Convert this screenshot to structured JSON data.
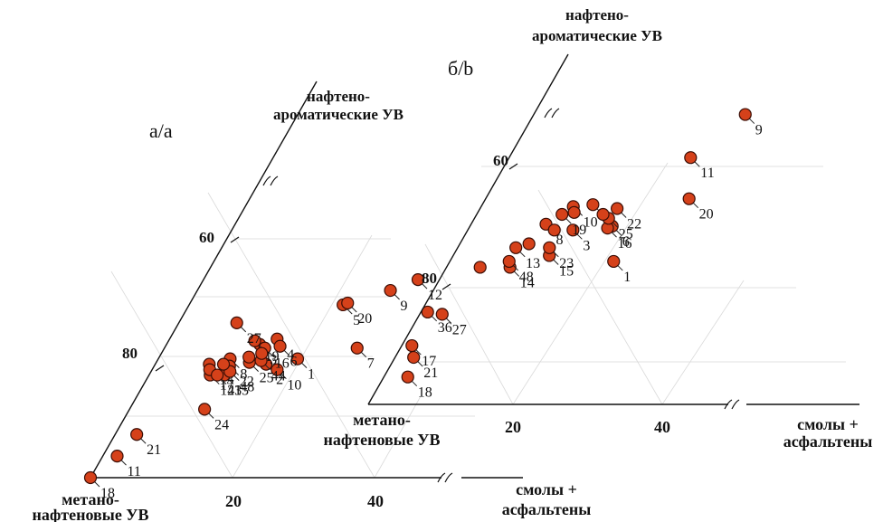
{
  "chart_data": [
    {
      "type": "scatter",
      "panel_label": "а/a",
      "axes": {
        "top": [
          "нафтено-",
          "ароматические УВ"
        ],
        "left": [
          "метано-",
          "нафтеновые УВ"
        ],
        "right": [
          "смолы +",
          "асфальтены"
        ]
      },
      "tick_labels": {
        "top_axis": [
          "60",
          "80"
        ],
        "bottom_axis": [
          "20",
          "40"
        ]
      },
      "points": [
        {
          "label": "1",
          "x": 19.5,
          "y": 33.0
        },
        {
          "label": "2",
          "x": 15.5,
          "y": 31.5
        },
        {
          "label": "3",
          "x": 13.0,
          "y": 37.0
        },
        {
          "label": "4",
          "x": 15.0,
          "y": 38.5
        },
        {
          "label": "5",
          "x": 21.5,
          "y": 48.0
        },
        {
          "label": "6",
          "x": 16.0,
          "y": 36.5
        },
        {
          "label": "7",
          "x": 27.0,
          "y": 36.0
        },
        {
          "label": "8",
          "x": 10.0,
          "y": 33.0
        },
        {
          "label": "9",
          "x": 27.0,
          "y": 52.0
        },
        {
          "label": "10",
          "x": 17.5,
          "y": 30.0
        },
        {
          "label": "11",
          "x": 2.0,
          "y": 6.0
        },
        {
          "label": "12",
          "x": 30.0,
          "y": 55.0
        },
        {
          "label": "13",
          "x": 7.5,
          "y": 31.5
        },
        {
          "label": "14",
          "x": 8.5,
          "y": 28.5
        },
        {
          "label": "15",
          "x": 10.5,
          "y": 28.5
        },
        {
          "label": "16",
          "x": 14.0,
          "y": 36.0
        },
        {
          "label": "17",
          "x": 8.0,
          "y": 30.0
        },
        {
          "label": "18",
          "x": 0.0,
          "y": 0.0
        },
        {
          "label": "19",
          "x": 12.0,
          "y": 38.0
        },
        {
          "label": "20",
          "x": 22.0,
          "y": 48.5
        },
        {
          "label": "21",
          "x": 3.0,
          "y": 12.0
        },
        {
          "label": "22",
          "x": 10.5,
          "y": 31.0
        },
        {
          "label": "23",
          "x": 9.5,
          "y": 28.5
        },
        {
          "label": "24",
          "x": 10.5,
          "y": 19.0
        },
        {
          "label": "25",
          "x": 13.0,
          "y": 32.0
        },
        {
          "label": "27",
          "x": 8.0,
          "y": 43.0
        },
        {
          "label": "36",
          "x": 34.0,
          "y": 46.0
        },
        {
          "label": "44",
          "x": 14.5,
          "y": 32.5
        },
        {
          "label": "48",
          "x": 11.0,
          "y": 29.5
        },
        {
          "label": "",
          "x": 9.5,
          "y": 31.5
        },
        {
          "label": "",
          "x": 14.0,
          "y": 34.5
        },
        {
          "label": "",
          "x": 12.5,
          "y": 33.5
        }
      ]
    },
    {
      "type": "scatter",
      "panel_label": "б/b",
      "axes": {
        "top": [
          "нафтено-",
          "ароматические УВ"
        ],
        "left": [
          "метано-",
          "нафтеновые УВ"
        ],
        "right": [
          "смолы +",
          "асфальтены"
        ]
      },
      "tick_labels": {
        "top_axis": [
          "60",
          "80"
        ],
        "bottom_axis": [
          "20",
          "40"
        ]
      },
      "points": [
        {
          "label": "1",
          "x": 23.5,
          "y": 36.5
        },
        {
          "label": "3",
          "x": 16.0,
          "y": 44.5
        },
        {
          "label": "4",
          "x": 17.0,
          "y": 51.0
        },
        {
          "label": "6",
          "x": 21.0,
          "y": 45.5
        },
        {
          "label": "8",
          "x": 12.0,
          "y": 46.0
        },
        {
          "label": "9",
          "x": 31.5,
          "y": 74.0
        },
        {
          "label": "10",
          "x": 14.5,
          "y": 50.5
        },
        {
          "label": "11",
          "x": 27.0,
          "y": 63.0
        },
        {
          "label": "13",
          "x": 9.5,
          "y": 40.0
        },
        {
          "label": "14",
          "x": 10.0,
          "y": 35.0
        },
        {
          "label": "15",
          "x": 14.5,
          "y": 38.0
        },
        {
          "label": "16",
          "x": 20.5,
          "y": 45.0
        },
        {
          "label": "17",
          "x": 2.0,
          "y": 15.0
        },
        {
          "label": "18",
          "x": 3.5,
          "y": 7.0
        },
        {
          "label": "19",
          "x": 13.5,
          "y": 48.5
        },
        {
          "label": "20",
          "x": 29.5,
          "y": 52.5
        },
        {
          "label": "21",
          "x": 3.0,
          "y": 12.0
        },
        {
          "label": "22",
          "x": 20.5,
          "y": 50.0
        },
        {
          "label": "23",
          "x": 14.0,
          "y": 40.0
        },
        {
          "label": "25",
          "x": 20.0,
          "y": 47.5
        },
        {
          "label": "27",
          "x": 4.0,
          "y": 23.0
        },
        {
          "label": "48",
          "x": 9.5,
          "y": 36.5
        },
        {
          "label": "",
          "x": 13.5,
          "y": 44.5
        },
        {
          "label": "",
          "x": 19.0,
          "y": 48.5
        },
        {
          "label": "",
          "x": 15.0,
          "y": 49.0
        },
        {
          "label": "",
          "x": 6.0,
          "y": 35.0
        },
        {
          "label": "",
          "x": 11.0,
          "y": 41.0
        }
      ]
    }
  ]
}
